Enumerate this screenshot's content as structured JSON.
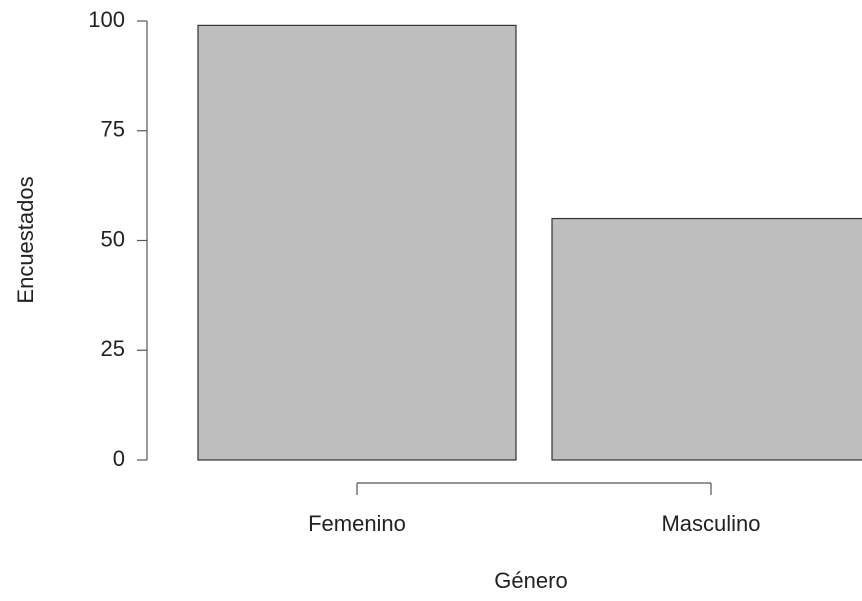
{
  "chart_data": {
    "type": "bar",
    "x_label": "Género",
    "y_label": "Encuestados",
    "categories": [
      "Femenino",
      "Masculino"
    ],
    "values": [
      99,
      55
    ],
    "color": "#bebebe",
    "ylim": [
      0,
      100
    ],
    "yticks": [
      0,
      25,
      50,
      75,
      100
    ]
  }
}
